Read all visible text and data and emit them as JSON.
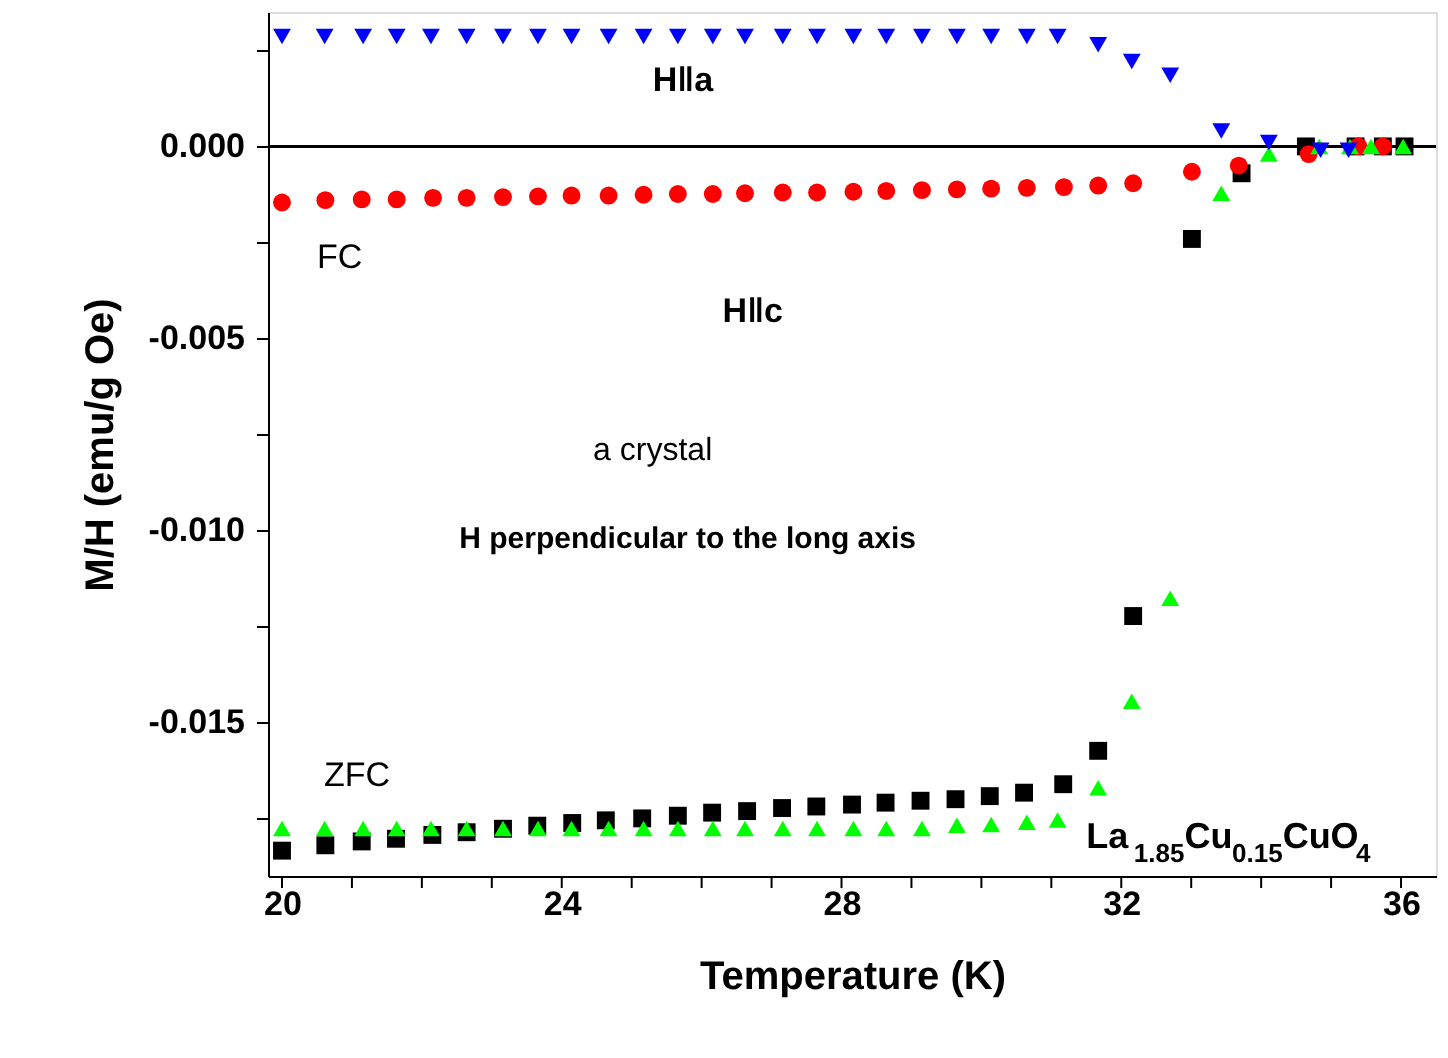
{
  "chart_data": {
    "type": "scatter",
    "xlabel": "Temperature (K)",
    "ylabel": "M/H (emu/g Oe)",
    "xlim": [
      19.8,
      36.5
    ],
    "ylim": [
      -0.019,
      0.0035
    ],
    "xticks": [
      20,
      {
        "value": 21,
        "label": null
      },
      {
        "value": 22,
        "label": null
      },
      {
        "value": 23,
        "label": null
      },
      24,
      {
        "value": 25,
        "label": null
      },
      {
        "value": 26,
        "label": null
      },
      {
        "value": 27,
        "label": null
      },
      28,
      {
        "value": 29,
        "label": null
      },
      {
        "value": 30,
        "label": null
      },
      {
        "value": 31,
        "label": null
      },
      32,
      {
        "value": 33,
        "label": null
      },
      {
        "value": 34,
        "label": null
      },
      {
        "value": 35,
        "label": null
      },
      36
    ],
    "yticks": [
      {
        "value": -0.0175,
        "label": null
      },
      {
        "value": -0.015,
        "label": "-0.015"
      },
      {
        "value": -0.0125,
        "label": null
      },
      {
        "value": -0.01,
        "label": "-0.010"
      },
      {
        "value": -0.0075,
        "label": null
      },
      {
        "value": -0.005,
        "label": "-0.005"
      },
      {
        "value": -0.0025,
        "label": null
      },
      {
        "value": 0,
        "label": "0.000"
      },
      {
        "value": 0.0025,
        "label": null
      }
    ],
    "grid": false,
    "ref_lines": [
      {
        "axis": "y",
        "value": 0,
        "color": "#000000",
        "line_style": "solid"
      }
    ],
    "annotations": [
      "H‖a",
      "FC",
      "H‖c",
      "a crystal",
      "H perpendicular to the long  axis",
      "ZFC",
      "La$_{1.85}$Cu$_{0.15}$CuO$_{4}$"
    ],
    "series": [
      {
        "color": "#0000ff",
        "marker": "triangle-down",
        "x": [
          20.0,
          20.61,
          21.16,
          21.64,
          22.13,
          22.64,
          23.16,
          23.66,
          24.14,
          24.67,
          25.17,
          25.66,
          26.16,
          26.62,
          27.16,
          27.65,
          28.17,
          28.64,
          29.15,
          29.65,
          30.14,
          30.65,
          31.09,
          31.67,
          32.15,
          32.7,
          33.43,
          34.11,
          34.85,
          35.25
        ],
        "values": [
          0.00286,
          0.00286,
          0.00286,
          0.00286,
          0.00286,
          0.00286,
          0.00286,
          0.00286,
          0.00286,
          0.00286,
          0.00286,
          0.00286,
          0.00286,
          0.00286,
          0.00286,
          0.00286,
          0.00286,
          0.00286,
          0.00286,
          0.00286,
          0.00286,
          0.00286,
          0.00286,
          0.00265,
          0.00221,
          0.00185,
          0.0004,
          0.0001,
          -0.0001,
          -0.0001
        ]
      },
      {
        "color": "#ff0000",
        "marker": "circle",
        "x": [
          20.0,
          20.62,
          21.14,
          21.64,
          22.16,
          22.64,
          23.16,
          23.66,
          24.14,
          24.67,
          25.17,
          25.66,
          26.16,
          26.62,
          27.16,
          27.65,
          28.17,
          28.64,
          29.15,
          29.65,
          30.14,
          30.65,
          31.18,
          31.67,
          32.17,
          33.01,
          33.68,
          34.68,
          35.39,
          35.74
        ],
        "values": [
          -0.00146,
          -0.0014,
          -0.00138,
          -0.00138,
          -0.00134,
          -0.00134,
          -0.00132,
          -0.0013,
          -0.00128,
          -0.00128,
          -0.00126,
          -0.00124,
          -0.00124,
          -0.00122,
          -0.0012,
          -0.0012,
          -0.00118,
          -0.00116,
          -0.00114,
          -0.00112,
          -0.0011,
          -0.00108,
          -0.00106,
          -0.00102,
          -0.00096,
          -0.00066,
          -0.0005,
          -0.0002,
          0,
          0
        ]
      },
      {
        "color": "#000000",
        "marker": "square",
        "x": [
          20.0,
          20.62,
          21.14,
          21.63,
          22.15,
          22.64,
          23.16,
          23.65,
          24.15,
          24.63,
          25.15,
          25.66,
          26.15,
          26.65,
          27.15,
          27.64,
          28.15,
          28.63,
          29.13,
          29.63,
          30.12,
          30.61,
          31.17,
          31.67,
          32.17,
          33.01,
          33.72,
          34.64,
          35.35,
          35.74,
          36.05
        ],
        "values": [
          -0.01834,
          -0.0182,
          -0.0181,
          -0.01803,
          -0.01793,
          -0.01786,
          -0.01777,
          -0.01769,
          -0.01762,
          -0.01755,
          -0.0175,
          -0.01743,
          -0.01735,
          -0.01731,
          -0.01723,
          -0.01719,
          -0.01714,
          -0.01709,
          -0.01704,
          -0.017,
          -0.01692,
          -0.01683,
          -0.01661,
          -0.01574,
          -0.01223,
          -0.00241,
          -0.0007,
          0,
          0,
          0,
          0
        ]
      },
      {
        "color": "#00ff00",
        "marker": "triangle",
        "x": [
          20.0,
          20.61,
          21.16,
          21.64,
          22.13,
          22.64,
          23.16,
          23.66,
          24.14,
          24.67,
          25.17,
          25.66,
          26.16,
          26.62,
          27.16,
          27.65,
          28.17,
          28.64,
          29.15,
          29.65,
          30.14,
          30.65,
          31.09,
          31.67,
          32.15,
          32.7,
          33.43,
          34.11,
          34.83,
          35.27,
          35.57,
          36.03
        ],
        "values": [
          -0.01776,
          -0.01776,
          -0.01776,
          -0.01776,
          -0.01776,
          -0.01776,
          -0.01776,
          -0.01776,
          -0.01776,
          -0.01776,
          -0.01776,
          -0.01776,
          -0.01776,
          -0.01776,
          -0.01776,
          -0.01776,
          -0.01776,
          -0.01776,
          -0.01776,
          -0.01768,
          -0.01766,
          -0.0176,
          -0.01754,
          -0.0167,
          -0.01445,
          -0.01177,
          -0.00122,
          -0.0002,
          0,
          0,
          0,
          0
        ]
      }
    ]
  }
}
